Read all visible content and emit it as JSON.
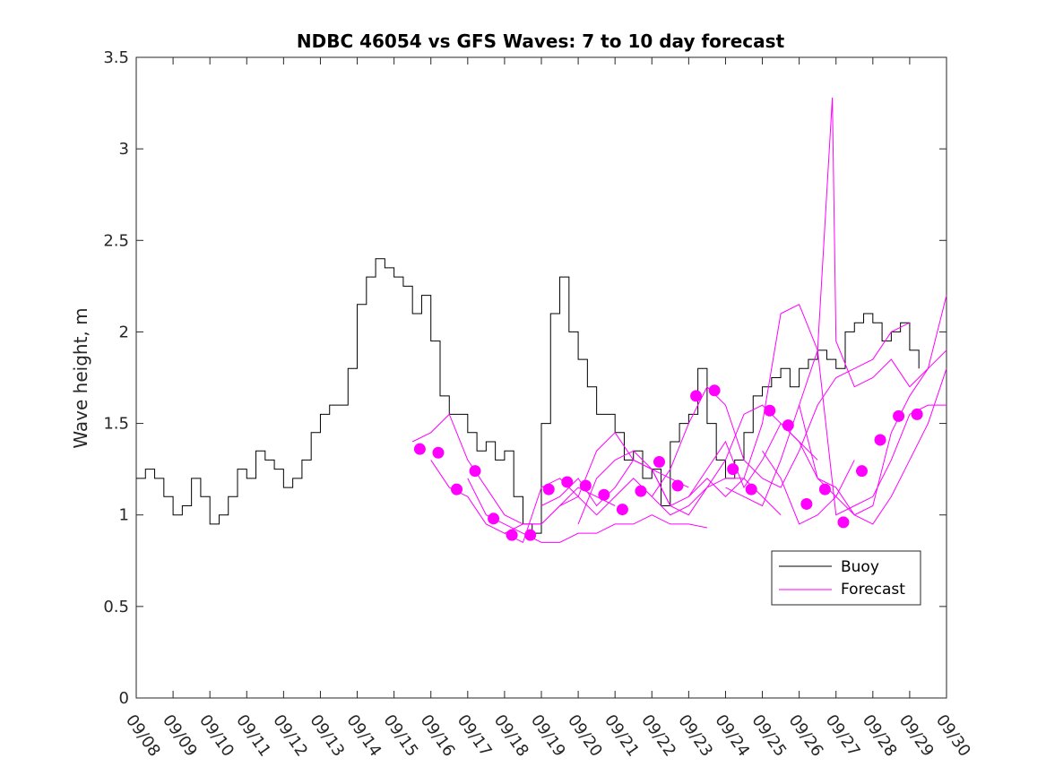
{
  "chart_data": {
    "type": "line",
    "title": "NDBC 46054 vs GFS Waves: 7 to 10 day forecast",
    "xlabel": "",
    "ylabel": "Wave height, m",
    "xlim": [
      0,
      22
    ],
    "ylim": [
      0,
      3.5
    ],
    "x_tick_labels": [
      "09/08",
      "09/09",
      "09/10",
      "09/11",
      "09/12",
      "09/13",
      "09/14",
      "09/15",
      "09/16",
      "09/17",
      "09/18",
      "09/19",
      "09/20",
      "09/21",
      "09/22",
      "09/23",
      "09/24",
      "09/25",
      "09/26",
      "09/27",
      "09/28",
      "09/29",
      "09/30"
    ],
    "y_ticks": [
      0,
      0.5,
      1,
      1.5,
      2,
      2.5,
      3,
      3.5
    ],
    "y_tick_labels": [
      "0",
      "0.5",
      "1",
      "1.5",
      "2",
      "2.5",
      "3",
      "3.5"
    ],
    "legend": {
      "position": "lower-right",
      "entries": [
        "Buoy",
        "Forecast"
      ]
    },
    "colors": {
      "buoy": "#000000",
      "forecast": "#ff00ff"
    },
    "series": [
      {
        "name": "Buoy",
        "x": [
          0,
          0.25,
          0.5,
          0.75,
          1,
          1.25,
          1.5,
          1.75,
          2,
          2.25,
          2.5,
          2.75,
          3,
          3.25,
          3.5,
          3.75,
          4,
          4.25,
          4.5,
          4.75,
          5,
          5.25,
          5.5,
          5.75,
          6,
          6.25,
          6.5,
          6.75,
          7,
          7.25,
          7.5,
          7.75,
          8,
          8.25,
          8.5,
          8.75,
          9,
          9.25,
          9.5,
          9.75,
          10,
          10.25,
          10.5,
          10.75,
          11,
          11.25,
          11.5,
          11.75,
          12,
          12.25,
          12.5,
          12.75,
          13,
          13.25,
          13.5,
          13.75,
          14,
          14.25,
          14.5,
          14.75,
          15,
          15.25,
          15.5,
          15.75,
          16,
          16.25,
          16.5,
          16.75,
          17,
          17.25,
          17.5,
          17.75,
          18,
          18.25,
          18.5,
          18.75,
          19,
          19.25,
          19.5,
          19.75,
          20,
          20.25,
          20.5,
          20.75,
          21,
          21.25
        ],
        "y": [
          1.2,
          1.25,
          1.2,
          1.1,
          1.0,
          1.05,
          1.2,
          1.1,
          0.95,
          1.0,
          1.1,
          1.25,
          1.2,
          1.35,
          1.3,
          1.25,
          1.15,
          1.2,
          1.3,
          1.45,
          1.55,
          1.6,
          1.6,
          1.8,
          2.15,
          2.3,
          2.4,
          2.35,
          2.3,
          2.25,
          2.1,
          2.2,
          1.95,
          1.65,
          1.55,
          1.55,
          1.45,
          1.35,
          1.4,
          1.3,
          1.35,
          1.1,
          0.95,
          0.9,
          1.5,
          2.1,
          2.3,
          2.0,
          1.85,
          1.7,
          1.55,
          1.55,
          1.45,
          1.3,
          1.35,
          1.2,
          1.25,
          1.05,
          1.4,
          1.5,
          1.55,
          1.8,
          1.5,
          1.3,
          1.2,
          1.3,
          1.45,
          1.65,
          1.7,
          1.75,
          1.8,
          1.7,
          1.8,
          1.85,
          1.9,
          1.85,
          1.8,
          2.0,
          2.05,
          2.1,
          2.05,
          1.95,
          2.0,
          2.05,
          1.9,
          1.8
        ]
      },
      {
        "name": "Forecast",
        "x": [
          7.5,
          8,
          8.5,
          9,
          9.5,
          10,
          10.5,
          11,
          11.5,
          12,
          12.5,
          13
        ],
        "y": [
          1.4,
          1.45,
          1.55,
          1.3,
          1.15,
          1.0,
          0.95,
          0.95,
          1.05,
          1.15,
          1.1,
          1.05
        ]
      },
      {
        "name": "Forecast",
        "x": [
          8,
          8.5,
          9,
          9.5,
          10,
          10.5,
          11,
          11.5,
          12,
          12.5,
          13,
          13.5,
          14,
          14.5,
          15
        ],
        "y": [
          1.3,
          1.15,
          1.1,
          0.95,
          0.9,
          0.95,
          0.95,
          1.05,
          1.1,
          1.35,
          1.45,
          1.3,
          1.25,
          1.2,
          1.15
        ]
      },
      {
        "name": "Forecast",
        "x": [
          9,
          9.5,
          10,
          10.5,
          11,
          11.5,
          12,
          12.5,
          13,
          13.5,
          14,
          14.5,
          15,
          15.5
        ],
        "y": [
          1.2,
          1.0,
          0.95,
          0.9,
          0.85,
          0.85,
          0.9,
          0.9,
          0.95,
          0.95,
          1.0,
          0.95,
          0.95,
          0.93
        ]
      },
      {
        "name": "Forecast",
        "x": [
          10,
          10.5,
          11,
          11.5,
          12,
          12.5,
          13,
          13.5,
          14,
          14.5,
          15,
          15.5,
          16,
          16.5,
          17,
          17.5
        ],
        "y": [
          0.9,
          0.85,
          1.15,
          1.2,
          1.1,
          1.0,
          1.1,
          1.2,
          1.1,
          1.0,
          1.05,
          1.15,
          1.2,
          1.2,
          1.1,
          1.0
        ]
      },
      {
        "name": "Forecast",
        "x": [
          11,
          11.5,
          12,
          12.5,
          13,
          13.5,
          14,
          14.5,
          15,
          15.5,
          16,
          16.5,
          17,
          17.5,
          18,
          18.5
        ],
        "y": [
          1.05,
          1.1,
          1.2,
          1.05,
          1.15,
          1.3,
          1.25,
          1.05,
          1.0,
          1.15,
          1.3,
          1.55,
          1.6,
          1.5,
          1.4,
          1.3
        ]
      },
      {
        "name": "Forecast",
        "x": [
          12,
          12.5,
          13,
          13.5,
          14,
          14.5,
          15,
          15.5,
          16,
          16.5,
          17,
          17.5,
          18,
          18.5,
          19,
          19.5
        ],
        "y": [
          0.95,
          1.2,
          1.3,
          1.35,
          1.25,
          1.05,
          1.1,
          1.25,
          1.4,
          1.15,
          1.3,
          1.5,
          1.4,
          1.2,
          1.1,
          1.3
        ]
      },
      {
        "name": "Forecast",
        "x": [
          14,
          14.5,
          15,
          15.5,
          16,
          16.5,
          17,
          17.5,
          18,
          18.5,
          19,
          19.5,
          20,
          20.5,
          21
        ],
        "y": [
          1.1,
          1.25,
          1.5,
          1.7,
          1.6,
          1.3,
          1.2,
          1.15,
          1.35,
          1.6,
          1.75,
          1.8,
          1.85,
          2.0,
          2.05
        ]
      },
      {
        "name": "Forecast",
        "x": [
          15,
          15.5,
          16,
          16.5,
          17,
          17.5,
          18,
          18.5,
          19,
          19.5,
          20,
          20.5,
          21,
          21.5,
          22
        ],
        "y": [
          1.1,
          1.2,
          1.1,
          1.2,
          1.5,
          2.1,
          2.15,
          1.9,
          1.0,
          1.05,
          1.1,
          1.3,
          1.55,
          1.6,
          1.6
        ]
      },
      {
        "name": "Forecast",
        "x": [
          16,
          16.5,
          17,
          17.5,
          18,
          18.5,
          18.9,
          19,
          19.5,
          20,
          20.5,
          21,
          21.5,
          22
        ],
        "y": [
          1.15,
          1.1,
          1.05,
          1.3,
          1.6,
          1.9,
          3.28,
          1.95,
          1.7,
          1.75,
          1.85,
          1.7,
          1.8,
          2.2
        ]
      },
      {
        "name": "Forecast",
        "x": [
          17,
          17.5,
          18,
          18.5,
          19,
          19.5,
          20,
          20.5,
          21,
          21.5,
          22
        ],
        "y": [
          1.35,
          1.2,
          0.95,
          1.0,
          1.1,
          1.0,
          1.05,
          1.45,
          1.65,
          1.8,
          1.9
        ]
      },
      {
        "name": "Forecast",
        "x": [
          18,
          18.5,
          19,
          19.5,
          20,
          20.5,
          21,
          21.5,
          22
        ],
        "y": [
          1.6,
          1.2,
          1.15,
          1.0,
          0.95,
          1.1,
          1.3,
          1.5,
          1.8
        ]
      },
      {
        "name": "Forecast markers",
        "x": [
          7.7,
          8.2,
          8.7,
          9.2,
          9.7,
          10.2,
          10.7,
          11.2,
          11.7,
          12.2,
          12.7,
          13.2,
          13.7,
          14.2,
          14.7,
          15.2,
          15.7,
          16.2,
          16.7,
          17.2,
          17.7,
          18.2,
          18.7,
          19.2,
          19.7,
          20.2,
          20.7,
          21.2
        ],
        "y": [
          1.36,
          1.34,
          1.14,
          1.24,
          0.98,
          0.89,
          0.89,
          1.14,
          1.18,
          1.16,
          1.11,
          1.03,
          1.13,
          1.29,
          1.16,
          1.65,
          1.68,
          1.25,
          1.14,
          1.57,
          1.49,
          1.06,
          1.14,
          0.96,
          1.24,
          1.41,
          1.54,
          1.55
        ]
      }
    ]
  }
}
